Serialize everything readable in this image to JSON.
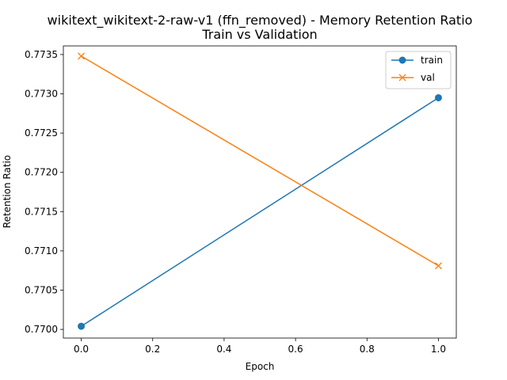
{
  "chart_data": {
    "type": "line",
    "title": "wikitext_wikitext-2-raw-v1 (ffn_removed) - Memory Retention Ratio",
    "subtitle": "Train vs Validation",
    "xlabel": "Epoch",
    "ylabel": "Retention Ratio",
    "x": [
      0.0,
      1.0
    ],
    "xlim": [
      -0.05,
      1.05
    ],
    "ylim": [
      0.76989,
      0.77361
    ],
    "xticks": [
      0.0,
      0.2,
      0.4,
      0.6,
      0.8,
      1.0
    ],
    "xtick_labels": [
      "0.0",
      "0.2",
      "0.4",
      "0.6",
      "0.8",
      "1.0"
    ],
    "yticks": [
      0.77,
      0.7705,
      0.771,
      0.7715,
      0.772,
      0.7725,
      0.773,
      0.7735
    ],
    "ytick_labels": [
      "0.7700",
      "0.7705",
      "0.7710",
      "0.7715",
      "0.7720",
      "0.7725",
      "0.7730",
      "0.7735"
    ],
    "grid": false,
    "legend_position": "top-right",
    "series": [
      {
        "name": "train",
        "values": [
          0.77004,
          0.77295
        ],
        "color": "#1f77b4",
        "marker": "circle"
      },
      {
        "name": "val",
        "values": [
          0.77348,
          0.77081
        ],
        "color": "#ff7f0e",
        "marker": "x"
      }
    ]
  }
}
